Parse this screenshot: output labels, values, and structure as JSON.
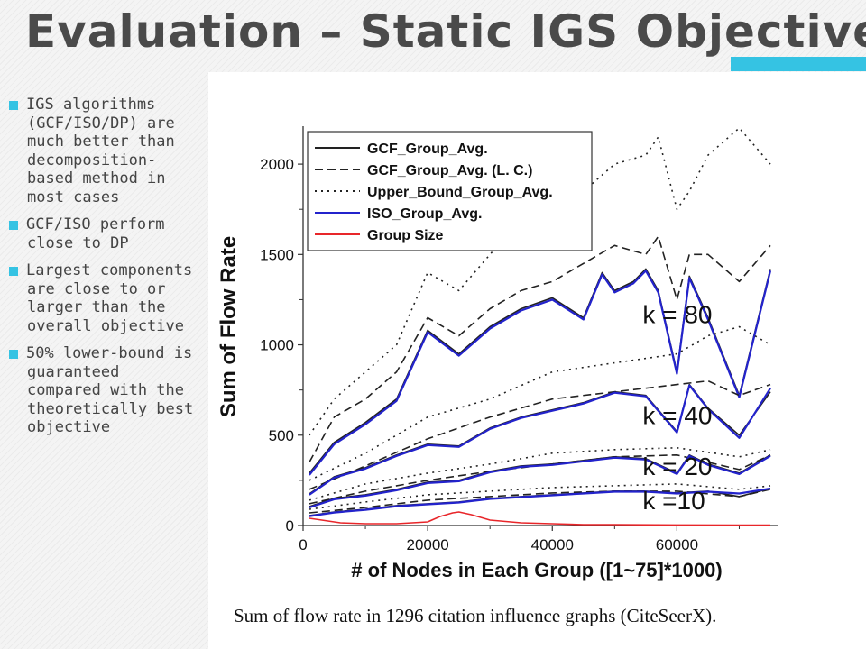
{
  "slide": {
    "title": "Evaluation – Static IGS Objective",
    "accent_color": "#35c3e3"
  },
  "bullets": [
    {
      "text": "IGS algorithms (GCF/ISO/DP) are much better than decomposition-based method in most cases"
    },
    {
      "text": "GCF/ISO perform close to DP"
    },
    {
      "text": "Largest components are close to or larger than the overall objective"
    },
    {
      "text": "50% lower-bound is guaranteed compared with the theoretically best objective"
    }
  ],
  "figure": {
    "caption": "Sum of flow rate in 1296 citation influence graphs (CiteSeerX)."
  },
  "chart_data": {
    "type": "line",
    "title": "",
    "xlabel": "# of Nodes in Each Group ([1~75]*1000)",
    "ylabel": "Sum of Flow Rate",
    "xlim": [
      0,
      75000
    ],
    "ylim": [
      0,
      2200
    ],
    "xticks": [
      0,
      20000,
      40000,
      60000
    ],
    "xtick_labels": [
      "0",
      "20000",
      "40000",
      "60000"
    ],
    "yticks": [
      0,
      500,
      1000,
      1500,
      2000
    ],
    "ytick_labels": [
      "0",
      "500",
      "1000",
      "1500",
      "2000"
    ],
    "grid": false,
    "legend_position": "top-left",
    "legend": [
      {
        "label": "GCF_Group_Avg.",
        "color": "#222222",
        "style": "solid"
      },
      {
        "label": "GCF_Group_Avg. (L. C.)",
        "color": "#222222",
        "style": "dashed"
      },
      {
        "label": "Upper_Bound_Group_Avg.",
        "color": "#222222",
        "style": "dotted"
      },
      {
        "label": "ISO_Group_Avg.",
        "color": "#2323cc",
        "style": "solid"
      },
      {
        "label": "Group Size",
        "color": "#e8262a",
        "style": "solid"
      }
    ],
    "annotations": [
      {
        "text": "k = 80",
        "x": 54500,
        "y": 1120
      },
      {
        "text": "k = 40",
        "x": 54500,
        "y": 560
      },
      {
        "text": "k = 20",
        "x": 54500,
        "y": 280
      },
      {
        "text": "k =10",
        "x": 54500,
        "y": 90
      }
    ],
    "series": [
      {
        "group": "k = 80",
        "kind": "upper",
        "style": "dotted",
        "color": "#222222",
        "x": [
          1000,
          5000,
          10000,
          15000,
          20000,
          25000,
          30000,
          35000,
          40000,
          45000,
          50000,
          55000,
          57000,
          60000,
          62000,
          65000,
          70000,
          75000
        ],
        "values": [
          500,
          700,
          850,
          1000,
          1400,
          1300,
          1500,
          1700,
          1800,
          1850,
          2000,
          2050,
          2150,
          1750,
          1850,
          2050,
          2200,
          2000
        ]
      },
      {
        "group": "k = 80",
        "kind": "gcf_lc",
        "style": "dashed",
        "color": "#222222",
        "x": [
          1000,
          5000,
          10000,
          15000,
          20000,
          25000,
          30000,
          35000,
          40000,
          45000,
          50000,
          55000,
          57000,
          60000,
          62000,
          65000,
          70000,
          75000
        ],
        "values": [
          350,
          600,
          700,
          850,
          1150,
          1050,
          1200,
          1300,
          1350,
          1450,
          1550,
          1500,
          1600,
          1250,
          1500,
          1500,
          1350,
          1550
        ]
      },
      {
        "group": "k = 80",
        "kind": "gcf",
        "style": "solid",
        "color": "#222222",
        "x": [
          1000,
          5000,
          10000,
          15000,
          20000,
          25000,
          30000,
          35000,
          40000,
          45000,
          48000,
          50000,
          53000,
          55000,
          57000,
          60000,
          62000,
          65000,
          70000,
          75000
        ],
        "values": [
          290,
          460,
          570,
          700,
          1080,
          950,
          1100,
          1200,
          1260,
          1150,
          1400,
          1300,
          1350,
          1420,
          1300,
          850,
          1380,
          1150,
          720,
          1420
        ]
      },
      {
        "group": "k = 80",
        "kind": "iso",
        "style": "solid",
        "color": "#2323cc",
        "x": [
          1000,
          5000,
          10000,
          15000,
          20000,
          25000,
          30000,
          35000,
          40000,
          45000,
          48000,
          50000,
          53000,
          55000,
          57000,
          60000,
          62000,
          65000,
          70000,
          75000
        ],
        "values": [
          280,
          450,
          560,
          690,
          1070,
          940,
          1090,
          1190,
          1250,
          1140,
          1390,
          1290,
          1340,
          1410,
          1290,
          840,
          1370,
          1140,
          710,
          1410
        ]
      },
      {
        "group": "k = 40",
        "kind": "upper",
        "style": "dotted",
        "color": "#222222",
        "x": [
          1000,
          10000,
          20000,
          30000,
          40000,
          50000,
          60000,
          65000,
          70000,
          75000
        ],
        "values": [
          250,
          400,
          600,
          700,
          850,
          900,
          950,
          1050,
          1100,
          1000
        ]
      },
      {
        "group": "k = 40",
        "kind": "gcf_lc",
        "style": "dashed",
        "color": "#222222",
        "x": [
          1000,
          10000,
          20000,
          30000,
          40000,
          50000,
          60000,
          65000,
          70000,
          75000
        ],
        "values": [
          200,
          330,
          480,
          600,
          700,
          740,
          780,
          800,
          720,
          780
        ]
      },
      {
        "group": "k = 40",
        "kind": "gcf",
        "style": "solid",
        "color": "#222222",
        "x": [
          1000,
          5000,
          10000,
          15000,
          20000,
          25000,
          30000,
          35000,
          40000,
          45000,
          50000,
          55000,
          60000,
          62000,
          65000,
          70000,
          75000
        ],
        "values": [
          175,
          270,
          320,
          390,
          450,
          440,
          540,
          600,
          640,
          680,
          740,
          720,
          520,
          780,
          650,
          500,
          740
        ]
      },
      {
        "group": "k = 40",
        "kind": "iso",
        "style": "solid",
        "color": "#2323cc",
        "x": [
          1000,
          5000,
          10000,
          15000,
          20000,
          25000,
          30000,
          35000,
          40000,
          45000,
          50000,
          55000,
          60000,
          62000,
          65000,
          70000,
          75000
        ],
        "values": [
          170,
          265,
          315,
          385,
          445,
          435,
          535,
          595,
          635,
          675,
          735,
          715,
          515,
          775,
          645,
          485,
          760
        ]
      },
      {
        "group": "k = 20",
        "kind": "upper",
        "style": "dotted",
        "color": "#222222",
        "x": [
          1000,
          10000,
          20000,
          30000,
          40000,
          50000,
          60000,
          70000,
          75000
        ],
        "values": [
          140,
          230,
          290,
          340,
          400,
          420,
          430,
          380,
          420
        ]
      },
      {
        "group": "k = 20",
        "kind": "gcf_lc",
        "style": "dashed",
        "color": "#222222",
        "x": [
          1000,
          10000,
          20000,
          30000,
          40000,
          50000,
          60000,
          70000,
          75000
        ],
        "values": [
          120,
          190,
          250,
          300,
          340,
          380,
          390,
          310,
          390
        ]
      },
      {
        "group": "k = 20",
        "kind": "gcf",
        "style": "solid",
        "color": "#222222",
        "x": [
          1000,
          5000,
          10000,
          15000,
          20000,
          25000,
          30000,
          35000,
          40000,
          45000,
          50000,
          55000,
          60000,
          62000,
          65000,
          70000,
          75000
        ],
        "values": [
          105,
          150,
          170,
          200,
          240,
          250,
          300,
          330,
          340,
          360,
          380,
          370,
          290,
          390,
          340,
          290,
          390
        ]
      },
      {
        "group": "k = 20",
        "kind": "iso",
        "style": "solid",
        "color": "#2323cc",
        "x": [
          1000,
          5000,
          10000,
          15000,
          20000,
          25000,
          30000,
          35000,
          40000,
          45000,
          50000,
          55000,
          60000,
          62000,
          65000,
          70000,
          75000
        ],
        "values": [
          100,
          145,
          165,
          195,
          235,
          245,
          295,
          325,
          335,
          355,
          375,
          365,
          285,
          385,
          335,
          285,
          385
        ]
      },
      {
        "group": "k =10",
        "kind": "upper",
        "style": "dotted",
        "color": "#222222",
        "x": [
          1000,
          10000,
          20000,
          30000,
          40000,
          50000,
          60000,
          70000,
          75000
        ],
        "values": [
          90,
          130,
          170,
          190,
          210,
          220,
          230,
          200,
          220
        ]
      },
      {
        "group": "k =10",
        "kind": "gcf_lc",
        "style": "dashed",
        "color": "#222222",
        "x": [
          1000,
          10000,
          20000,
          30000,
          40000,
          50000,
          60000,
          70000,
          75000
        ],
        "values": [
          70,
          100,
          140,
          160,
          180,
          190,
          190,
          160,
          200
        ]
      },
      {
        "group": "k =10",
        "kind": "gcf",
        "style": "solid",
        "color": "#222222",
        "x": [
          1000,
          5000,
          10000,
          15000,
          20000,
          25000,
          30000,
          35000,
          40000,
          45000,
          50000,
          55000,
          60000,
          65000,
          70000,
          75000
        ],
        "values": [
          55,
          75,
          90,
          110,
          120,
          130,
          150,
          160,
          170,
          180,
          190,
          190,
          180,
          190,
          160,
          205
        ]
      },
      {
        "group": "k =10",
        "kind": "iso",
        "style": "solid",
        "color": "#2323cc",
        "x": [
          1000,
          5000,
          10000,
          15000,
          20000,
          25000,
          30000,
          35000,
          40000,
          45000,
          50000,
          55000,
          60000,
          65000,
          70000,
          75000
        ],
        "values": [
          52,
          72,
          87,
          107,
          117,
          127,
          147,
          157,
          167,
          177,
          187,
          187,
          177,
          187,
          177,
          205
        ]
      },
      {
        "group": "Group Size",
        "kind": "size",
        "style": "solid",
        "color": "#e8262a",
        "x": [
          1000,
          3000,
          6000,
          10000,
          15000,
          20000,
          22000,
          24000,
          25000,
          27000,
          30000,
          35000,
          40000,
          45000,
          50000,
          60000,
          70000,
          75000
        ],
        "values": [
          40,
          30,
          15,
          10,
          10,
          20,
          50,
          70,
          75,
          60,
          30,
          15,
          10,
          5,
          5,
          3,
          2,
          2
        ]
      }
    ]
  }
}
